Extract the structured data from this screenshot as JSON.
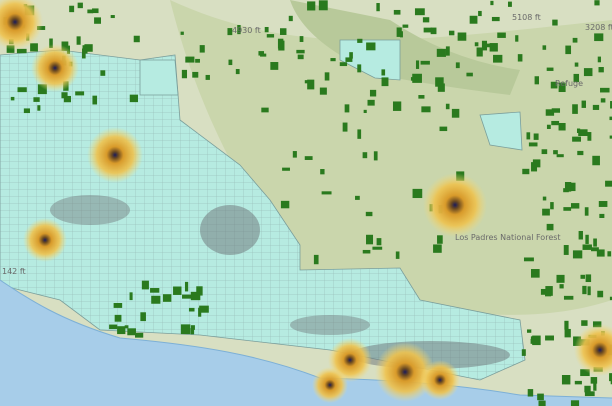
{
  "labels": {
    "elevation_top": "5108 ft",
    "elevation_right": "3208 ft",
    "elevation_left": "142 ft",
    "elevation_mid": "4930 ft",
    "forest": "Los Padres National Forest",
    "refuge": "Refuge"
  }
}
